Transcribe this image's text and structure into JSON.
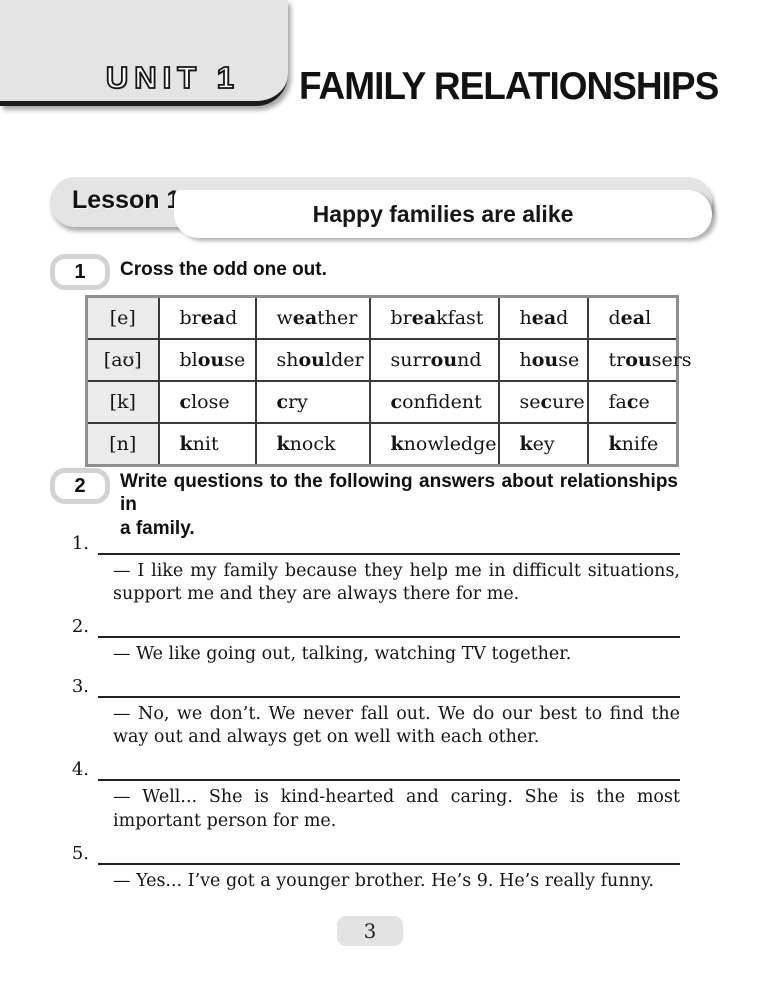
{
  "unit": {
    "label": "UNIT 1",
    "title": "FAMILY RELATIONSHIPS"
  },
  "lesson": {
    "label": "Lesson 1",
    "title": "Happy families are alike"
  },
  "exercise1": {
    "number": "1",
    "instruction": "Cross the odd one out.",
    "table": {
      "rows": [
        {
          "sound": "[e]",
          "words": [
            {
              "pre": "br",
              "bold": "ea",
              "post": "d"
            },
            {
              "pre": "w",
              "bold": "ea",
              "post": "ther"
            },
            {
              "pre": "br",
              "bold": "ea",
              "post": "kfast"
            },
            {
              "pre": "h",
              "bold": "ea",
              "post": "d"
            },
            {
              "pre": "d",
              "bold": "ea",
              "post": "l"
            }
          ]
        },
        {
          "sound": "[aʊ]",
          "words": [
            {
              "pre": "bl",
              "bold": "ou",
              "post": "se"
            },
            {
              "pre": "sh",
              "bold": "ou",
              "post": "lder"
            },
            {
              "pre": "surr",
              "bold": "ou",
              "post": "nd"
            },
            {
              "pre": "h",
              "bold": "ou",
              "post": "se"
            },
            {
              "pre": "tr",
              "bold": "ou",
              "post": "sers"
            }
          ]
        },
        {
          "sound": "[k]",
          "words": [
            {
              "pre": "",
              "bold": "c",
              "post": "lose"
            },
            {
              "pre": "",
              "bold": "c",
              "post": "ry"
            },
            {
              "pre": "",
              "bold": "c",
              "post": "onfident"
            },
            {
              "pre": "se",
              "bold": "c",
              "post": "ure"
            },
            {
              "pre": "fa",
              "bold": "c",
              "post": "e"
            }
          ]
        },
        {
          "sound": "[n]",
          "words": [
            {
              "pre": "",
              "bold": "k",
              "post": "nit"
            },
            {
              "pre": "",
              "bold": "k",
              "post": "nock"
            },
            {
              "pre": "",
              "bold": "k",
              "post": "nowledge"
            },
            {
              "pre": "",
              "bold": "k",
              "post": "ey"
            },
            {
              "pre": "",
              "bold": "k",
              "post": "nife"
            }
          ]
        }
      ]
    }
  },
  "exercise2": {
    "number": "2",
    "instruction_lines": [
      "Write questions to the following answers about relationships in",
      "a family."
    ],
    "items": [
      {
        "number": "1.",
        "answer": "— I like my family because they help me in difficult situations, support me and they are always there for me."
      },
      {
        "number": "2.",
        "answer": "— We like going out, talking, watching TV together."
      },
      {
        "number": "3.",
        "answer": "— No, we don’t. We never fall out. We do our best to find the way out and always get on well with each other."
      },
      {
        "number": "4.",
        "answer": "— Well... She is kind-hearted and caring. She is the most important person for me."
      },
      {
        "number": "5.",
        "answer": "— Yes... I’ve got a younger brother. He’s 9. He’s really funny."
      }
    ]
  },
  "page": {
    "number": "3"
  }
}
